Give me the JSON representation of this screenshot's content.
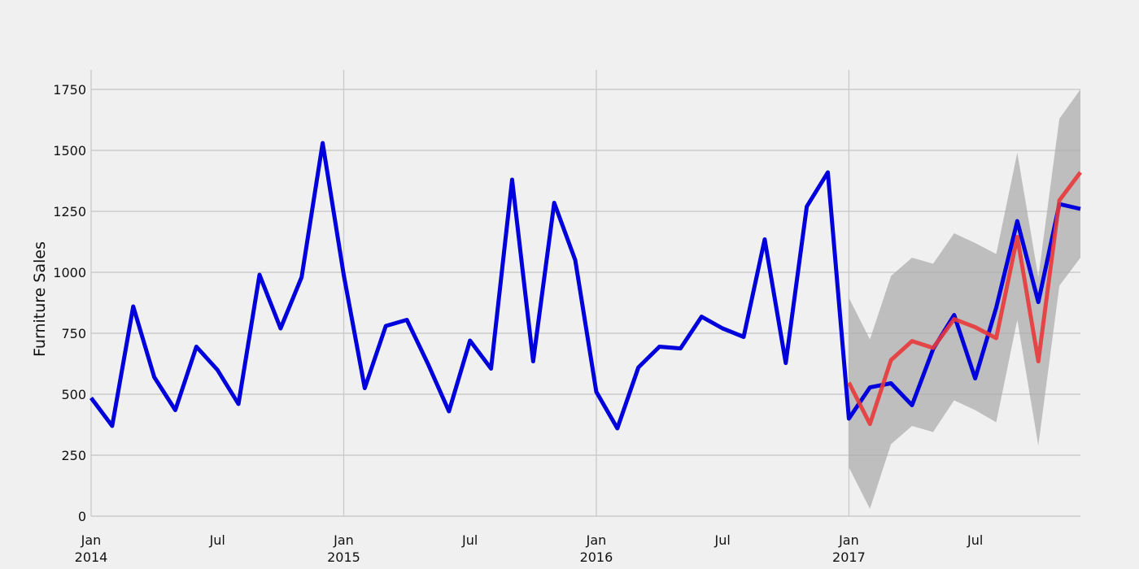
{
  "chart_data": {
    "type": "line",
    "ylabel": "Furniture Sales",
    "xlabel": "",
    "ylim": [
      0,
      1750
    ],
    "xlim": [
      "2014-01-01",
      "2017-12-01"
    ],
    "yticks": [
      0,
      250,
      500,
      750,
      1000,
      1250,
      1500,
      1750
    ],
    "grid": true,
    "xticks": [
      {
        "date": "2014-01-01",
        "label": "Jan",
        "sublabel": "2014",
        "major": true
      },
      {
        "date": "2014-07-01",
        "label": "Jul",
        "sublabel": "",
        "major": false
      },
      {
        "date": "2015-01-01",
        "label": "Jan",
        "sublabel": "2015",
        "major": true
      },
      {
        "date": "2015-07-01",
        "label": "Jul",
        "sublabel": "",
        "major": false
      },
      {
        "date": "2016-01-01",
        "label": "Jan",
        "sublabel": "2016",
        "major": true
      },
      {
        "date": "2016-07-01",
        "label": "Jul",
        "sublabel": "",
        "major": false
      },
      {
        "date": "2017-01-01",
        "label": "Jan",
        "sublabel": "2017",
        "major": true
      },
      {
        "date": "2017-07-01",
        "label": "Jul",
        "sublabel": "",
        "major": false
      }
    ],
    "colors": {
      "observed": "#0000dd",
      "forecast": "#e8393a",
      "band": "#a8a8a8",
      "grid": "#cbcbcb",
      "background": "#f0f0f0"
    },
    "series": [
      {
        "key": "observed",
        "x": [
          "2014-01-01",
          "2014-02-01",
          "2014-03-01",
          "2014-04-01",
          "2014-05-01",
          "2014-06-01",
          "2014-07-01",
          "2014-08-01",
          "2014-09-01",
          "2014-10-01",
          "2014-11-01",
          "2014-12-01",
          "2015-01-01",
          "2015-02-01",
          "2015-03-01",
          "2015-04-01",
          "2015-05-01",
          "2015-06-01",
          "2015-07-01",
          "2015-08-01",
          "2015-09-01",
          "2015-10-01",
          "2015-11-01",
          "2015-12-01",
          "2016-01-01",
          "2016-02-01",
          "2016-03-01",
          "2016-04-01",
          "2016-05-01",
          "2016-06-01",
          "2016-07-01",
          "2016-08-01",
          "2016-09-01",
          "2016-10-01",
          "2016-11-01",
          "2016-12-01",
          "2017-01-01",
          "2017-02-01",
          "2017-03-01",
          "2017-04-01",
          "2017-05-01",
          "2017-06-01",
          "2017-07-01",
          "2017-08-01",
          "2017-09-01",
          "2017-10-01",
          "2017-11-01",
          "2017-12-01"
        ],
        "values": [
          485,
          370,
          860,
          570,
          435,
          695,
          600,
          460,
          990,
          770,
          980,
          1530,
          990,
          525,
          780,
          805,
          625,
          430,
          720,
          605,
          1380,
          635,
          1285,
          1050,
          510,
          360,
          610,
          695,
          688,
          818,
          770,
          735,
          1135,
          628,
          1270,
          1410,
          400,
          528,
          545,
          455,
          685,
          825,
          565,
          855,
          1210,
          878,
          1280,
          1260
        ]
      },
      {
        "key": "forecast",
        "x": [
          "2017-01-01",
          "2017-02-01",
          "2017-03-01",
          "2017-04-01",
          "2017-05-01",
          "2017-06-01",
          "2017-07-01",
          "2017-08-01",
          "2017-09-01",
          "2017-10-01",
          "2017-11-01",
          "2017-12-01"
        ],
        "values": [
          548,
          378,
          640,
          718,
          690,
          808,
          775,
          730,
          1145,
          635,
          1295,
          1410
        ]
      }
    ],
    "confidence_band": {
      "x": [
        "2017-01-01",
        "2017-02-01",
        "2017-03-01",
        "2017-04-01",
        "2017-05-01",
        "2017-06-01",
        "2017-07-01",
        "2017-08-01",
        "2017-09-01",
        "2017-10-01",
        "2017-11-01",
        "2017-12-01"
      ],
      "lower": [
        200,
        30,
        295,
        370,
        345,
        475,
        435,
        385,
        805,
        290,
        945,
        1060
      ],
      "upper": [
        895,
        725,
        985,
        1060,
        1035,
        1160,
        1120,
        1075,
        1490,
        980,
        1630,
        1750
      ]
    }
  }
}
